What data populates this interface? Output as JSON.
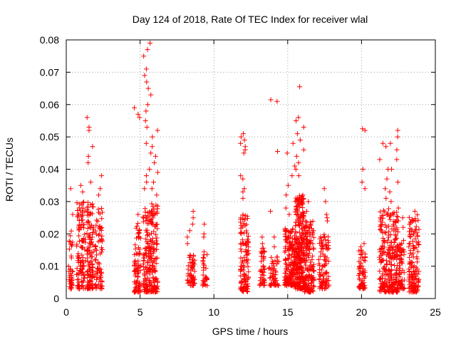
{
  "chart_data": {
    "type": "scatter",
    "title": "Day 124 of 2018, Rate Of TEC Index for receiver wlal",
    "xlabel": "GPS time / hours",
    "ylabel": "ROTI / TECUs",
    "xlim": [
      0,
      25
    ],
    "ylim": [
      0,
      0.08
    ],
    "x_ticks": [
      0,
      5,
      10,
      15,
      20,
      25
    ],
    "x_tick_labels": [
      "0",
      "5",
      "10",
      "15",
      "20",
      "25"
    ],
    "y_ticks": [
      0,
      0.01,
      0.02,
      0.03,
      0.04,
      0.05,
      0.06,
      0.07,
      0.08
    ],
    "y_tick_labels": [
      "0",
      "0.01",
      "0.02",
      "0.03",
      "0.04",
      "0.05",
      "0.06",
      "0.07",
      "0.08"
    ],
    "grid": true,
    "marker": "+",
    "marker_color": "#ff0000",
    "clusters": [
      {
        "x_start": 0.15,
        "x_end": 0.45,
        "n": 40,
        "y_min": 0.003,
        "y_max": 0.021,
        "outliers": [
          0.034,
          0.026
        ]
      },
      {
        "x_start": 0.7,
        "x_end": 1.3,
        "n": 110,
        "y_min": 0.003,
        "y_max": 0.03,
        "outliers": [
          0.035,
          0.033,
          0.022
        ]
      },
      {
        "x_start": 1.4,
        "x_end": 1.85,
        "n": 110,
        "y_min": 0.003,
        "y_max": 0.03,
        "outliers": [
          0.056,
          0.053,
          0.052,
          0.047,
          0.044,
          0.042,
          0.036
        ]
      },
      {
        "x_start": 1.9,
        "x_end": 2.45,
        "n": 80,
        "y_min": 0.003,
        "y_max": 0.028,
        "outliers": [
          0.038,
          0.034,
          0.032
        ]
      },
      {
        "x_start": 4.6,
        "x_end": 5.05,
        "n": 80,
        "y_min": 0.002,
        "y_max": 0.024,
        "outliers": [
          0.059,
          0.057,
          0.056,
          0.026
        ]
      },
      {
        "x_start": 5.2,
        "x_end": 5.75,
        "n": 120,
        "y_min": 0.002,
        "y_max": 0.028,
        "outliers": [
          0.079,
          0.077,
          0.075,
          0.071,
          0.069,
          0.067,
          0.065,
          0.063,
          0.06,
          0.058,
          0.055,
          0.053,
          0.048,
          0.045,
          0.04,
          0.038,
          0.036,
          0.034
        ]
      },
      {
        "x_start": 5.75,
        "x_end": 6.2,
        "n": 110,
        "y_min": 0.002,
        "y_max": 0.03,
        "outliers": [
          0.052,
          0.05,
          0.047,
          0.044,
          0.042,
          0.039,
          0.036,
          0.034,
          0.032
        ]
      },
      {
        "x_start": 8.2,
        "x_end": 8.7,
        "n": 60,
        "y_min": 0.004,
        "y_max": 0.015,
        "outliers": [
          0.027,
          0.025,
          0.023,
          0.021,
          0.019,
          0.017
        ]
      },
      {
        "x_start": 9.2,
        "x_end": 9.55,
        "n": 30,
        "y_min": 0.004,
        "y_max": 0.016,
        "outliers": [
          0.023,
          0.02,
          0.019
        ]
      },
      {
        "x_start": 11.8,
        "x_end": 12.35,
        "n": 120,
        "y_min": 0.002,
        "y_max": 0.027,
        "outliers": [
          0.051,
          0.05,
          0.049,
          0.048,
          0.047,
          0.046,
          0.045,
          0.038,
          0.037,
          0.034,
          0.033,
          0.031
        ]
      },
      {
        "x_start": 13.1,
        "x_end": 13.45,
        "n": 45,
        "y_min": 0.004,
        "y_max": 0.016,
        "outliers": [
          0.019,
          0.017
        ]
      },
      {
        "x_start": 13.7,
        "x_end": 14.4,
        "n": 50,
        "y_min": 0.004,
        "y_max": 0.013,
        "outliers": [
          0.0615,
          0.061,
          0.0455,
          0.027,
          0.019,
          0.016
        ]
      },
      {
        "x_start": 14.8,
        "x_end": 15.5,
        "n": 180,
        "y_min": 0.004,
        "y_max": 0.022,
        "outliers": [
          0.048,
          0.045,
          0.041,
          0.038,
          0.035,
          0.032,
          0.028,
          0.026
        ]
      },
      {
        "x_start": 15.5,
        "x_end": 16.1,
        "n": 260,
        "y_min": 0.003,
        "y_max": 0.032,
        "outliers": [
          0.0655,
          0.056,
          0.055,
          0.053,
          0.051,
          0.049,
          0.046,
          0.044,
          0.042,
          0.04,
          0.038
        ]
      },
      {
        "x_start": 16.1,
        "x_end": 16.8,
        "n": 160,
        "y_min": 0.002,
        "y_max": 0.024,
        "outliers": [
          0.03,
          0.027
        ]
      },
      {
        "x_start": 17.1,
        "x_end": 17.8,
        "n": 90,
        "y_min": 0.003,
        "y_max": 0.02,
        "outliers": [
          0.034,
          0.03,
          0.026,
          0.025,
          0.024
        ]
      },
      {
        "x_start": 19.8,
        "x_end": 20.25,
        "n": 60,
        "y_min": 0.003,
        "y_max": 0.015,
        "outliers": [
          0.0525,
          0.052,
          0.04,
          0.036,
          0.034,
          0.017,
          0.016
        ]
      },
      {
        "x_start": 21.2,
        "x_end": 21.9,
        "n": 130,
        "y_min": 0.002,
        "y_max": 0.028,
        "outliers": [
          0.048,
          0.047,
          0.043,
          0.04,
          0.037,
          0.034,
          0.031
        ]
      },
      {
        "x_start": 21.9,
        "x_end": 22.5,
        "n": 140,
        "y_min": 0.002,
        "y_max": 0.027,
        "outliers": [
          0.052,
          0.05,
          0.048,
          0.046,
          0.043,
          0.04,
          0.036,
          0.033,
          0.03,
          0.028
        ]
      },
      {
        "x_start": 22.5,
        "x_end": 22.9,
        "n": 60,
        "y_min": 0.003,
        "y_max": 0.018,
        "outliers": [
          0.025,
          0.022
        ]
      },
      {
        "x_start": 23.2,
        "x_end": 23.9,
        "n": 140,
        "y_min": 0.002,
        "y_max": 0.026,
        "outliers": [
          0.027
        ]
      }
    ]
  }
}
